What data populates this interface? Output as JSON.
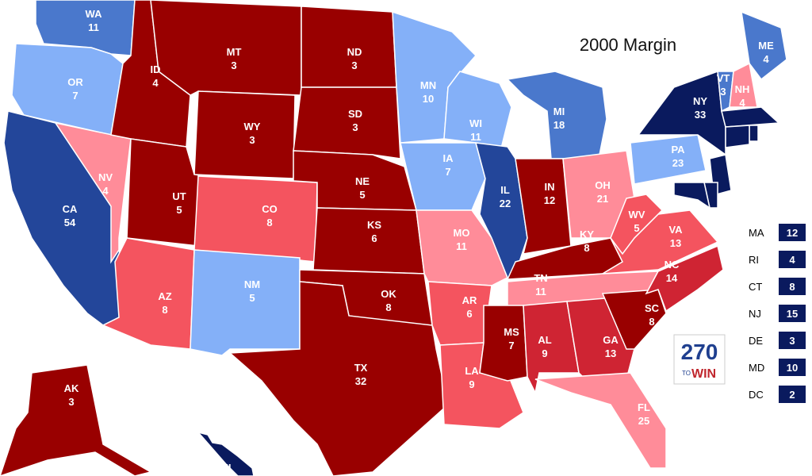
{
  "title": "2000 Margin",
  "states": [
    {
      "abbr": "WA",
      "votes": 11,
      "color": "#4a78cc"
    },
    {
      "abbr": "OR",
      "votes": 7,
      "color": "#84b0f8"
    },
    {
      "abbr": "CA",
      "votes": 54,
      "color": "#23469a"
    },
    {
      "abbr": "NV",
      "votes": 4,
      "color": "#ff8c99"
    },
    {
      "abbr": "ID",
      "votes": 4,
      "color": "#990000"
    },
    {
      "abbr": "MT",
      "votes": 3,
      "color": "#990000"
    },
    {
      "abbr": "WY",
      "votes": 3,
      "color": "#990000"
    },
    {
      "abbr": "UT",
      "votes": 5,
      "color": "#990000"
    },
    {
      "abbr": "CO",
      "votes": 8,
      "color": "#f4545f"
    },
    {
      "abbr": "AZ",
      "votes": 8,
      "color": "#f4545f"
    },
    {
      "abbr": "NM",
      "votes": 5,
      "color": "#84b0f8"
    },
    {
      "abbr": "ND",
      "votes": 3,
      "color": "#990000"
    },
    {
      "abbr": "SD",
      "votes": 3,
      "color": "#990000"
    },
    {
      "abbr": "NE",
      "votes": 5,
      "color": "#990000"
    },
    {
      "abbr": "KS",
      "votes": 6,
      "color": "#990000"
    },
    {
      "abbr": "OK",
      "votes": 8,
      "color": "#990000"
    },
    {
      "abbr": "TX",
      "votes": 32,
      "color": "#990000"
    },
    {
      "abbr": "MN",
      "votes": 10,
      "color": "#84b0f8"
    },
    {
      "abbr": "IA",
      "votes": 7,
      "color": "#84b0f8"
    },
    {
      "abbr": "MO",
      "votes": 11,
      "color": "#ff8c99"
    },
    {
      "abbr": "AR",
      "votes": 6,
      "color": "#f4545f"
    },
    {
      "abbr": "LA",
      "votes": 9,
      "color": "#f4545f"
    },
    {
      "abbr": "WI",
      "votes": 11,
      "color": "#84b0f8"
    },
    {
      "abbr": "IL",
      "votes": 22,
      "color": "#23469a"
    },
    {
      "abbr": "MI",
      "votes": 18,
      "color": "#4a78cc"
    },
    {
      "abbr": "IN",
      "votes": 12,
      "color": "#990000"
    },
    {
      "abbr": "OH",
      "votes": 21,
      "color": "#ff8c99"
    },
    {
      "abbr": "KY",
      "votes": 8,
      "color": "#990000"
    },
    {
      "abbr": "TN",
      "votes": 11,
      "color": "#ff8c99"
    },
    {
      "abbr": "MS",
      "votes": 7,
      "color": "#990000"
    },
    {
      "abbr": "AL",
      "votes": 9,
      "color": "#cf2433"
    },
    {
      "abbr": "GA",
      "votes": 13,
      "color": "#cf2433"
    },
    {
      "abbr": "FL",
      "votes": 25,
      "color": "#ff8c99"
    },
    {
      "abbr": "SC",
      "votes": 8,
      "color": "#990000"
    },
    {
      "abbr": "NC",
      "votes": 14,
      "color": "#cf2433"
    },
    {
      "abbr": "VA",
      "votes": 13,
      "color": "#f4545f"
    },
    {
      "abbr": "WV",
      "votes": 5,
      "color": "#f4545f"
    },
    {
      "abbr": "PA",
      "votes": 23,
      "color": "#84b0f8"
    },
    {
      "abbr": "NY",
      "votes": 33,
      "color": "#0a1a5e"
    },
    {
      "abbr": "ME",
      "votes": 4,
      "color": "#4a78cc"
    },
    {
      "abbr": "VT",
      "votes": 3,
      "color": "#4a78cc"
    },
    {
      "abbr": "NH",
      "votes": 4,
      "color": "#ff8c99"
    },
    {
      "abbr": "AK",
      "votes": 3,
      "color": "#990000"
    },
    {
      "abbr": "HI",
      "color": "#0a1a5e"
    },
    {
      "color": "#0a1a5e"
    },
    {
      "color": "#0a1a5e"
    },
    {
      "color": "#0a1a5e"
    },
    {
      "color": "#0a1a5e"
    },
    {
      "color": "#0a1a5e"
    },
    {
      "color": "#0a1a5e"
    }
  ],
  "side_list": [
    {
      "abbr": "MA",
      "votes": 12
    },
    {
      "abbr": "RI",
      "votes": 4
    },
    {
      "abbr": "CT",
      "votes": 8
    },
    {
      "abbr": "NJ",
      "votes": 15
    },
    {
      "abbr": "DE",
      "votes": 3
    },
    {
      "abbr": "MD",
      "votes": 10
    },
    {
      "abbr": "DC",
      "votes": 2
    }
  ],
  "logo": {
    "number": "270",
    "to": "TO",
    "win": "WIN"
  }
}
